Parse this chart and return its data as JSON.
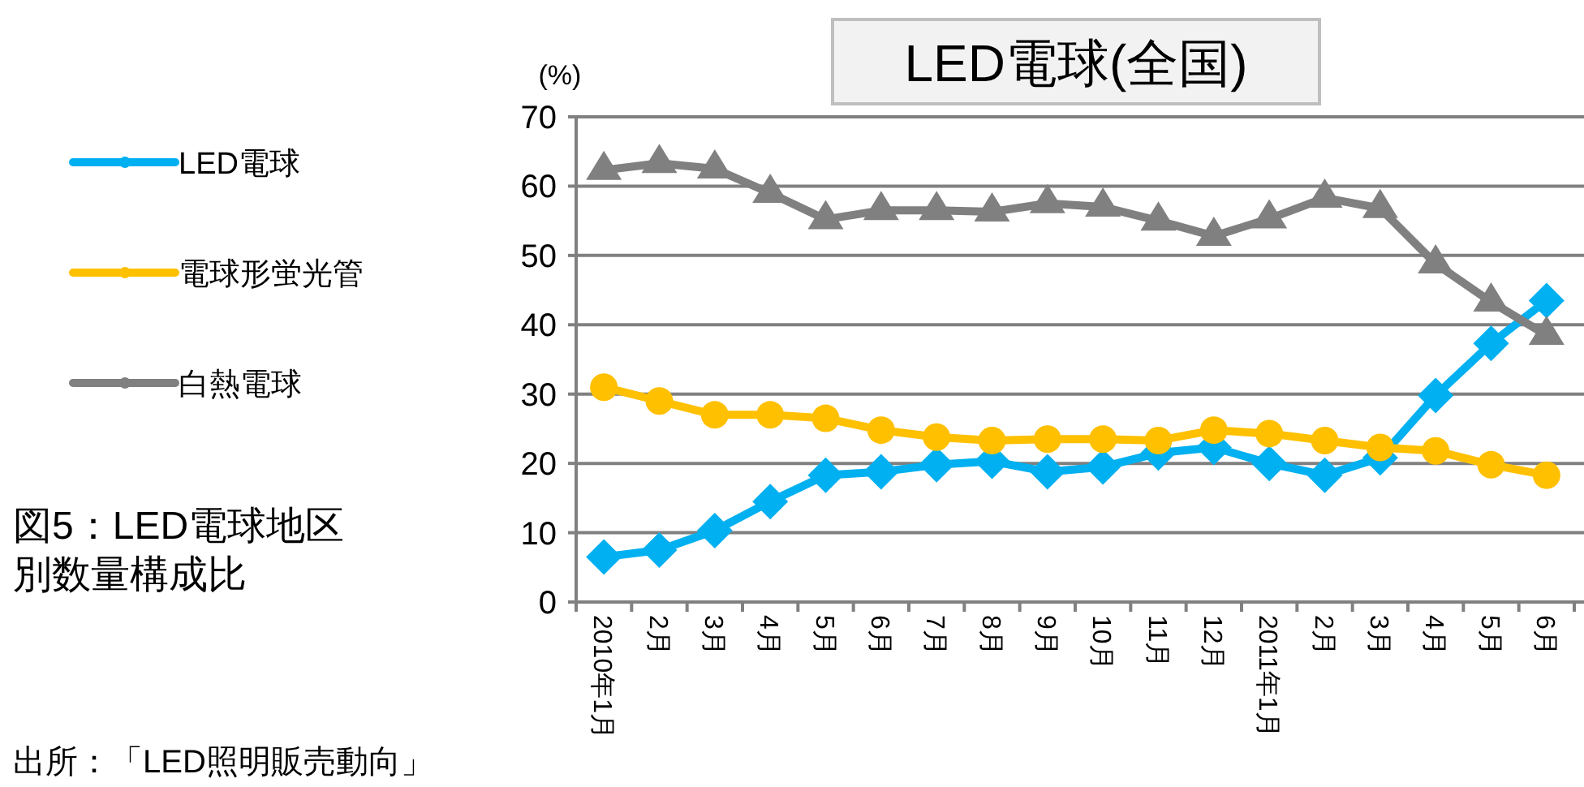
{
  "chart_data": {
    "type": "line",
    "title": "LED電球(全国)",
    "ylabel": "(%)",
    "categories": [
      "2010年1月",
      "2月",
      "3月",
      "4月",
      "5月",
      "6月",
      "7月",
      "8月",
      "9月",
      "10月",
      "11月",
      "12月",
      "2011年1月",
      "2月",
      "3月",
      "4月",
      "5月",
      "6月"
    ],
    "series": [
      {
        "name": "LED電球",
        "color": "#00b0f0",
        "marker": "diamond",
        "values": [
          6.5,
          7.5,
          10.3,
          14.5,
          18.3,
          18.8,
          19.8,
          20.3,
          18.8,
          19.5,
          21.5,
          22.3,
          20.0,
          18.3,
          20.8,
          29.8,
          37.3,
          43.5
        ]
      },
      {
        "name": "電球形蛍光管",
        "color": "#ffc000",
        "marker": "circle",
        "values": [
          31,
          29,
          27,
          27,
          26.5,
          24.8,
          23.8,
          23.3,
          23.5,
          23.5,
          23.3,
          24.8,
          24.3,
          23.3,
          22.3,
          21.8,
          19.8,
          18.3
        ]
      },
      {
        "name": "白熱電球",
        "color": "#808080",
        "marker": "triangle",
        "values": [
          62.3,
          63.3,
          62.5,
          59,
          55.2,
          56.5,
          56.5,
          56.3,
          57.5,
          57,
          55,
          52.8,
          55.3,
          58.3,
          56.8,
          48.8,
          43.3,
          38.5
        ]
      }
    ],
    "ylim": [
      0,
      70
    ],
    "yticks": [
      0,
      10,
      20,
      30,
      40,
      50,
      60,
      70
    ],
    "grid": "y",
    "legend": "left",
    "line_style": "solid",
    "annotations": [
      "図5：LED電球地区別数量構成比",
      "出所：「LED照明販売動向」"
    ]
  }
}
